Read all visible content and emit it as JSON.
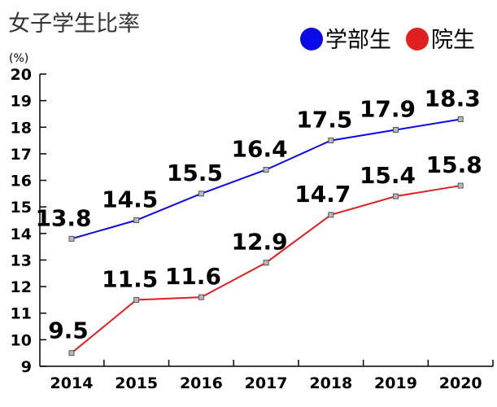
{
  "chart_data": {
    "type": "line",
    "title": "女子学生比率",
    "ylabel": "(%)",
    "xlabel": "",
    "categories": [
      "2014",
      "2015",
      "2016",
      "2017",
      "2018",
      "2019",
      "2020"
    ],
    "ylim": [
      9,
      20
    ],
    "yticks": [
      "9",
      "10",
      "11",
      "12",
      "13",
      "14",
      "15",
      "16",
      "17",
      "18",
      "19",
      "20"
    ],
    "grid": false,
    "legend_position": "top-right",
    "series": [
      {
        "name": "学部生",
        "color": "#0a0ae6",
        "values": [
          13.8,
          14.5,
          15.5,
          16.4,
          17.5,
          17.9,
          18.3
        ],
        "labels": [
          "13.8",
          "14.5",
          "15.5",
          "16.4",
          "17.5",
          "17.9",
          "18.3"
        ]
      },
      {
        "name": "院生",
        "color": "#e02020",
        "values": [
          9.5,
          11.5,
          11.6,
          12.9,
          14.7,
          15.4,
          15.8
        ],
        "labels": [
          "9.5",
          "11.5",
          "11.6",
          "12.9",
          "14.7",
          "15.4",
          "15.8"
        ]
      }
    ]
  }
}
